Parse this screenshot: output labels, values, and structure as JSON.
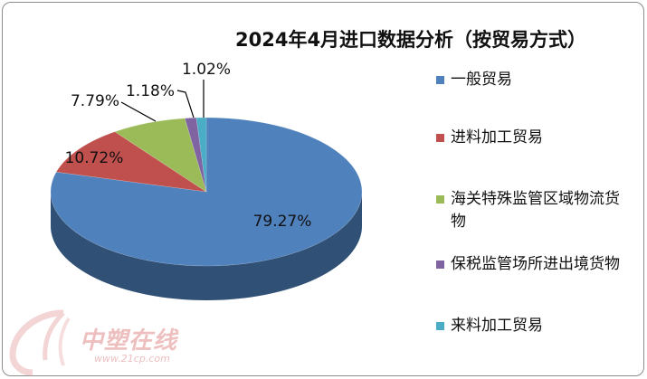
{
  "chart_data": {
    "type": "pie",
    "title": "2024年4月进口数据分析（按贸易方式）",
    "slices": [
      {
        "name": "一般贸易",
        "value": 79.27,
        "label": "79.27%",
        "color": "#4f81bd"
      },
      {
        "name": "进料加工贸易",
        "value": 10.72,
        "label": "10.72%",
        "color": "#c0504d"
      },
      {
        "name": "海关特殊监管区域物流货物",
        "value": 7.79,
        "label": "7.79%",
        "color": "#9bbb59"
      },
      {
        "name": "保税监管场所进出境货物",
        "value": 1.18,
        "label": "1.18%",
        "color": "#8064a2"
      },
      {
        "name": "来料加工贸易",
        "value": 1.02,
        "label": "1.02%",
        "color": "#4bacc6"
      }
    ],
    "legend_position": "right",
    "style": "3d-pie"
  },
  "watermark": {
    "text": "中塑在线",
    "url": "www.21cp.com"
  }
}
